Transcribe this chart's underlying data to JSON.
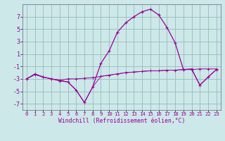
{
  "title": "",
  "xlabel": "Windchill (Refroidissement éolien,°C)",
  "hours": [
    0,
    1,
    2,
    3,
    4,
    5,
    6,
    7,
    8,
    9,
    10,
    11,
    12,
    13,
    14,
    15,
    16,
    17,
    18,
    19,
    20,
    21,
    22,
    23
  ],
  "windchill": [
    -3,
    -2.2,
    -2.7,
    -3.0,
    -3.3,
    -3.5,
    -4.8,
    -6.8,
    -4.3,
    -0.5,
    1.5,
    4.5,
    6.0,
    7.0,
    7.8,
    8.2,
    7.3,
    5.3,
    2.8,
    -1.5,
    -1.4,
    -4.0,
    -2.7,
    -1.5
  ],
  "temp": [
    -3,
    -2.3,
    -2.7,
    -3.0,
    -3.2,
    -3.0,
    -3.0,
    -2.9,
    -2.8,
    -2.6,
    -2.4,
    -2.2,
    -2.0,
    -1.9,
    -1.8,
    -1.7,
    -1.7,
    -1.6,
    -1.6,
    -1.5,
    -1.5,
    -1.4,
    -1.4,
    -1.4
  ],
  "minwc": [
    -3,
    -2.3,
    -2.7,
    -3.0,
    -3.2,
    -3.5,
    -4.8,
    -6.8,
    -4.3,
    -2.6,
    -2.4,
    -2.2,
    -2.0,
    -1.9,
    -1.8,
    -1.7,
    -1.7,
    -1.6,
    -1.6,
    -1.5,
    -1.5,
    -4.0,
    -2.7,
    -1.5
  ],
  "ylim": [
    -8,
    9
  ],
  "yticks": [
    -7,
    -5,
    -3,
    -1,
    1,
    3,
    5,
    7
  ],
  "bg_color": "#cce8e8",
  "line_color": "#990099",
  "grid_color": "#99bbbb"
}
